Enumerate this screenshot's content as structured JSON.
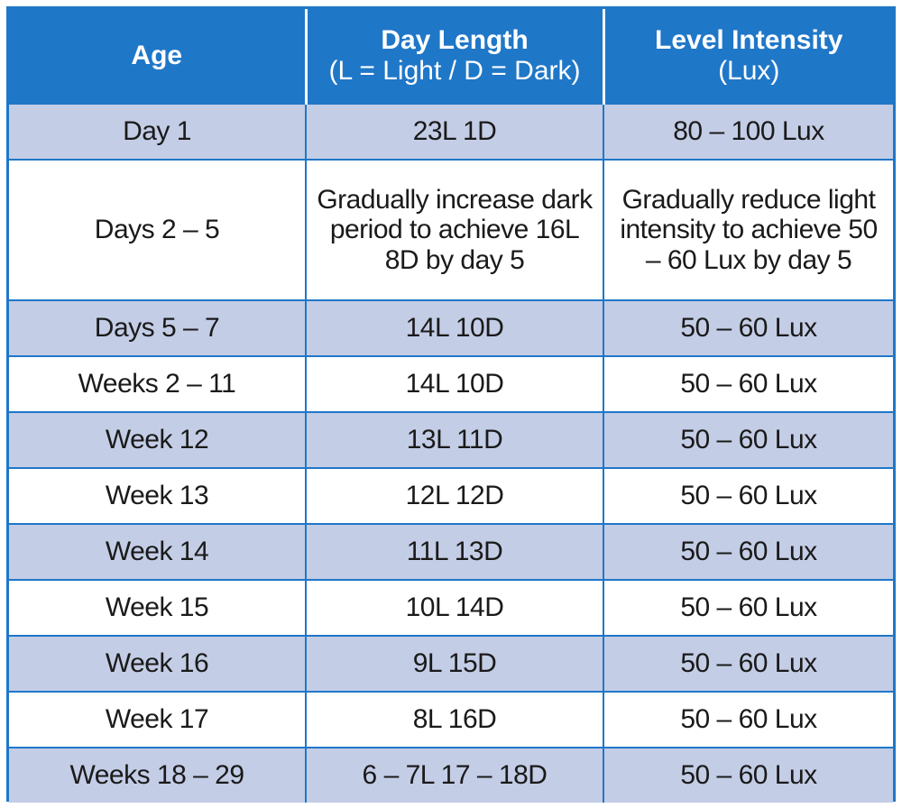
{
  "colors": {
    "header_bg": "#1f77c8",
    "header_text": "#ffffff",
    "shaded_row": "#c4cde6",
    "plain_row": "#ffffff",
    "grid": "#1f77c8"
  },
  "header": {
    "age": "Age",
    "day_length": "Day Length",
    "day_length_sub": "(L = Light / D = Dark)",
    "intensity": "Level Intensity",
    "intensity_sub": "(Lux)"
  },
  "rows": [
    {
      "age": "Day 1",
      "day_length": "23L 1D",
      "intensity": "80 – 100 Lux"
    },
    {
      "age": "Days 2 – 5",
      "day_length": "Gradually increase dark period to achieve 16L 8D by day 5",
      "intensity": "Gradually reduce light intensity to achieve 50 – 60 Lux by day 5"
    },
    {
      "age": "Days 5 – 7",
      "day_length": "14L 10D",
      "intensity": "50 – 60 Lux"
    },
    {
      "age": "Weeks 2 – 11",
      "day_length": "14L 10D",
      "intensity": "50 – 60 Lux"
    },
    {
      "age": "Week 12",
      "day_length": "13L 11D",
      "intensity": "50 – 60 Lux"
    },
    {
      "age": "Week 13",
      "day_length": "12L 12D",
      "intensity": "50 – 60 Lux"
    },
    {
      "age": "Week 14",
      "day_length": "11L 13D",
      "intensity": "50 – 60 Lux"
    },
    {
      "age": "Week 15",
      "day_length": "10L 14D",
      "intensity": "50 – 60 Lux"
    },
    {
      "age": "Week 16",
      "day_length": "9L 15D",
      "intensity": "50 – 60 Lux"
    },
    {
      "age": "Week 17",
      "day_length": "8L 16D",
      "intensity": "50 – 60 Lux"
    },
    {
      "age": "Weeks 18 – 29",
      "day_length": "6 – 7L 17 – 18D",
      "intensity": "50 – 60 Lux"
    }
  ]
}
